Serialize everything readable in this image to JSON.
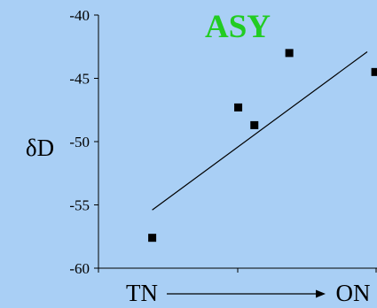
{
  "chart_data": {
    "type": "scatter",
    "title": "ASY",
    "title_color": "#22cc22",
    "ylabel": "δD",
    "x_start_label": "TN",
    "x_end_label": "ON",
    "y_ticks": [
      -40,
      -45,
      -50,
      -55,
      -60
    ],
    "ylim": [
      -60,
      -40
    ],
    "xlim": [
      0,
      1
    ],
    "points": [
      {
        "x": 0.2,
        "y": -57.6
      },
      {
        "x": 0.52,
        "y": -47.3
      },
      {
        "x": 0.58,
        "y": -48.7
      },
      {
        "x": 0.71,
        "y": -43.0
      },
      {
        "x": 1.03,
        "y": -44.5
      }
    ],
    "trendline": [
      {
        "x": 0.2,
        "y": -55.4
      },
      {
        "x": 1.0,
        "y": -42.9
      }
    ],
    "marker": "square",
    "marker_color": "#000000",
    "background": "#a9cff5",
    "grid": false
  }
}
